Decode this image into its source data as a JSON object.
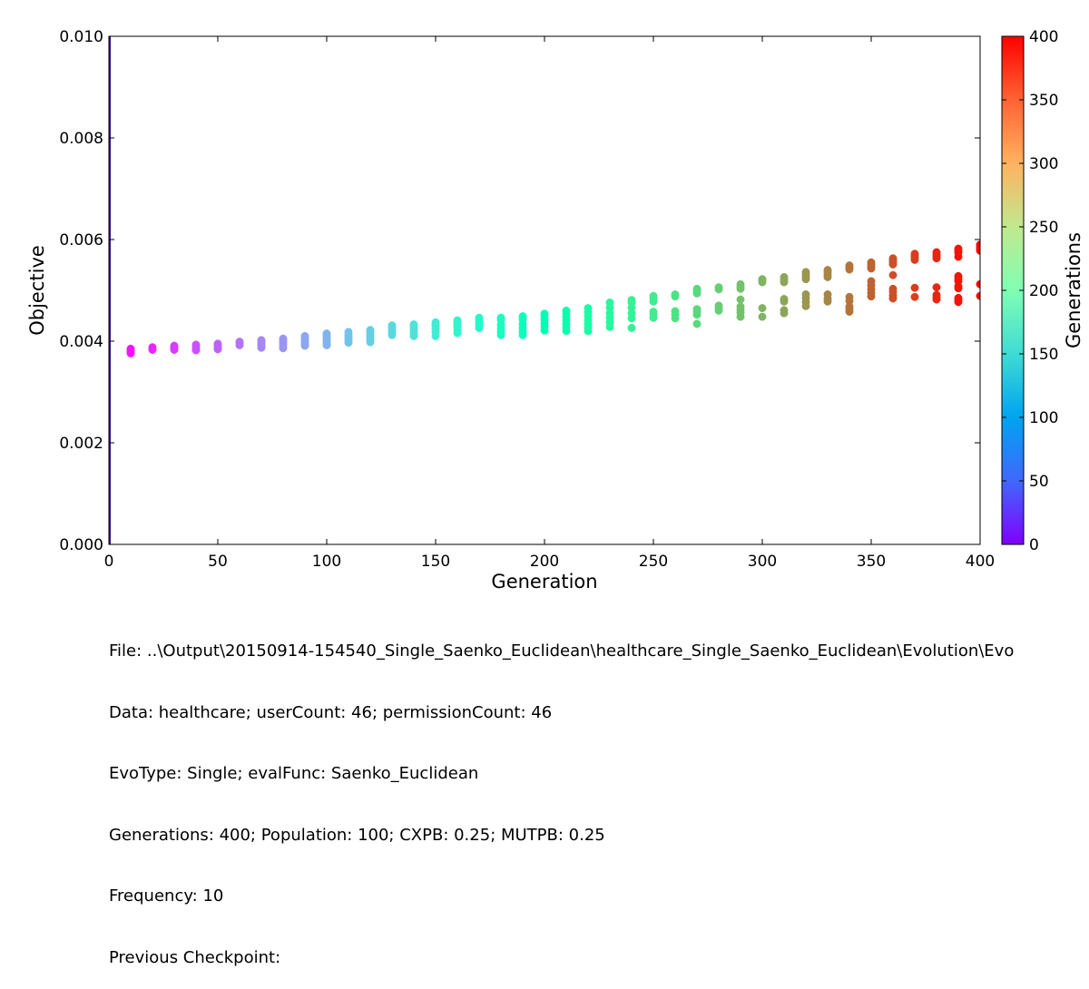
{
  "chart_data": {
    "type": "scatter",
    "xlabel": "Generation",
    "ylabel": "Objective",
    "xlim": [
      0,
      400
    ],
    "ylim": [
      0,
      0.01
    ],
    "xticks": [
      "0",
      "50",
      "100",
      "150",
      "200",
      "250",
      "300",
      "350",
      "400"
    ],
    "yticks": [
      "0.000",
      "0.002",
      "0.004",
      "0.006",
      "0.008",
      "0.010"
    ],
    "grid": false,
    "colorbar": {
      "label": "Generations",
      "range": [
        0,
        400
      ],
      "ticks": [
        "0",
        "50",
        "100",
        "150",
        "200",
        "250",
        "300",
        "350",
        "400"
      ],
      "colormap": "rainbow"
    },
    "point_color": "colored by generation (rainbow colormap)",
    "points": [
      {
        "x": 10,
        "y": [
          0.00376,
          0.00379,
          0.00382,
          0.00385
        ]
      },
      {
        "x": 20,
        "y": [
          0.00383,
          0.00385,
          0.00388
        ]
      },
      {
        "x": 30,
        "y": [
          0.00383,
          0.00386,
          0.00389,
          0.00391
        ]
      },
      {
        "x": 40,
        "y": [
          0.00382,
          0.00385,
          0.00389,
          0.00393
        ]
      },
      {
        "x": 50,
        "y": [
          0.00384,
          0.00388,
          0.00392,
          0.00395
        ]
      },
      {
        "x": 60,
        "y": [
          0.00392,
          0.00396,
          0.00399
        ]
      },
      {
        "x": 70,
        "y": [
          0.00387,
          0.00391,
          0.00395,
          0.00399,
          0.00402
        ]
      },
      {
        "x": 80,
        "y": [
          0.00386,
          0.0039,
          0.00394,
          0.00398,
          0.00402,
          0.00405
        ]
      },
      {
        "x": 90,
        "y": [
          0.00391,
          0.00395,
          0.00399,
          0.00403,
          0.00406,
          0.0041
        ]
      },
      {
        "x": 100,
        "y": [
          0.00392,
          0.00396,
          0.004,
          0.00404,
          0.00408,
          0.00412,
          0.00415
        ]
      },
      {
        "x": 110,
        "y": [
          0.00397,
          0.00401,
          0.00405,
          0.00409,
          0.00413,
          0.00418
        ]
      },
      {
        "x": 120,
        "y": [
          0.00398,
          0.00402,
          0.00406,
          0.0041,
          0.00414,
          0.00418,
          0.00422
        ]
      },
      {
        "x": 130,
        "y": [
          0.00412,
          0.00418,
          0.00423,
          0.00428,
          0.00431
        ]
      },
      {
        "x": 140,
        "y": [
          0.0041,
          0.00415,
          0.0042,
          0.00425,
          0.00429,
          0.00433
        ]
      },
      {
        "x": 150,
        "y": [
          0.0041,
          0.00418,
          0.00424,
          0.00429,
          0.00433,
          0.00437
        ]
      },
      {
        "x": 160,
        "y": [
          0.00416,
          0.00422,
          0.00428,
          0.00433,
          0.00438,
          0.00441
        ]
      },
      {
        "x": 170,
        "y": [
          0.00426,
          0.00431,
          0.00437,
          0.00442,
          0.00446
        ]
      },
      {
        "x": 180,
        "y": [
          0.00412,
          0.00418,
          0.00425,
          0.00432,
          0.00442,
          0.00446
        ]
      },
      {
        "x": 190,
        "y": [
          0.00412,
          0.00419,
          0.00426,
          0.00434,
          0.00443,
          0.00449
        ]
      },
      {
        "x": 200,
        "y": [
          0.00421,
          0.00428,
          0.00435,
          0.00442,
          0.00449,
          0.00454
        ]
      },
      {
        "x": 210,
        "y": [
          0.0042,
          0.00427,
          0.00434,
          0.00441,
          0.00448,
          0.00455,
          0.0046
        ]
      },
      {
        "x": 220,
        "y": [
          0.0042,
          0.00427,
          0.00434,
          0.00441,
          0.00449,
          0.00457,
          0.00465
        ]
      },
      {
        "x": 230,
        "y": [
          0.00428,
          0.00437,
          0.00446,
          0.00455,
          0.00466,
          0.00476
        ]
      },
      {
        "x": 240,
        "y": [
          0.00426,
          0.00445,
          0.00455,
          0.00466,
          0.00476,
          0.00481
        ]
      },
      {
        "x": 250,
        "y": [
          0.00446,
          0.00453,
          0.00458,
          0.00478,
          0.00484,
          0.00489
        ]
      },
      {
        "x": 260,
        "y": [
          0.00445,
          0.00452,
          0.00459,
          0.00488,
          0.00492
        ]
      },
      {
        "x": 270,
        "y": [
          0.00434,
          0.00452,
          0.00458,
          0.00463,
          0.00494,
          0.00499,
          0.00503
        ]
      },
      {
        "x": 280,
        "y": [
          0.0046,
          0.00465,
          0.0047,
          0.00502,
          0.00506
        ]
      },
      {
        "x": 290,
        "y": [
          0.00448,
          0.00456,
          0.00462,
          0.00468,
          0.00482,
          0.00503,
          0.00507,
          0.00512
        ]
      },
      {
        "x": 300,
        "y": [
          0.00448,
          0.00465,
          0.00516,
          0.0052,
          0.00522
        ]
      },
      {
        "x": 310,
        "y": [
          0.00455,
          0.00461,
          0.00478,
          0.00483,
          0.00516,
          0.00521,
          0.00526
        ]
      },
      {
        "x": 320,
        "y": [
          0.00469,
          0.00477,
          0.00485,
          0.00492,
          0.00522,
          0.00527,
          0.00532,
          0.00536
        ]
      },
      {
        "x": 330,
        "y": [
          0.00478,
          0.00484,
          0.00492,
          0.00526,
          0.00531,
          0.00536,
          0.0054
        ]
      },
      {
        "x": 340,
        "y": [
          0.00458,
          0.00463,
          0.00468,
          0.00479,
          0.00487,
          0.00541,
          0.00545,
          0.00549
        ]
      },
      {
        "x": 350,
        "y": [
          0.00488,
          0.00495,
          0.00502,
          0.0051,
          0.00518,
          0.00543,
          0.00547,
          0.00551,
          0.00555
        ]
      },
      {
        "x": 360,
        "y": [
          0.00484,
          0.0049,
          0.00497,
          0.00503,
          0.0053,
          0.00551,
          0.00555,
          0.00559,
          0.00563
        ]
      },
      {
        "x": 370,
        "y": [
          0.00487,
          0.00505,
          0.0056,
          0.00564,
          0.00568,
          0.00572
        ]
      },
      {
        "x": 380,
        "y": [
          0.00482,
          0.00486,
          0.00491,
          0.00506,
          0.00563,
          0.00567,
          0.00571,
          0.00575
        ]
      },
      {
        "x": 390,
        "y": [
          0.00477,
          0.00481,
          0.00485,
          0.00504,
          0.00508,
          0.00518,
          0.00523,
          0.00528,
          0.00566,
          0.00574,
          0.00578,
          0.00582
        ]
      },
      {
        "x": 400,
        "y": [
          0.00489,
          0.00512,
          0.00578,
          0.00582,
          0.00586,
          0.0059
        ]
      }
    ]
  },
  "info": {
    "file": "File: ..\\Output\\20150914-154540_Single_Saenko_Euclidean\\healthcare_Single_Saenko_Euclidean\\Evolution\\Evo",
    "data": "Data: healthcare; userCount: 46; permissionCount: 46",
    "evotype": "EvoType: Single; evalFunc: Saenko_Euclidean",
    "generations": "Generations: 400; Population: 100; CXPB: 0.25; MUTPB: 0.25",
    "frequency": "Frequency: 10",
    "checkpoint": "Previous Checkpoint:"
  }
}
